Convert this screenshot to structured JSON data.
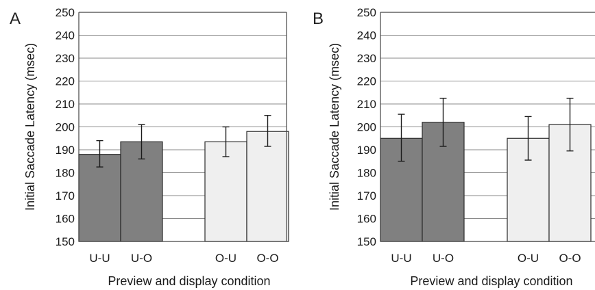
{
  "chart_data": [
    {
      "type": "bar",
      "panel_label": "A",
      "categories": [
        "U-U",
        "U-O",
        "O-U",
        "O-O"
      ],
      "values": [
        188,
        193.5,
        193.5,
        198
      ],
      "error_low": [
        182.5,
        186,
        187,
        191.5
      ],
      "error_high": [
        194,
        201,
        200,
        205
      ],
      "bar_colors": [
        "#808080",
        "#808080",
        "#efefef",
        "#efefef"
      ],
      "xlabel": "Preview and display condition",
      "ylabel": "Initial Saccade Latency (msec)",
      "ylim": [
        150,
        250
      ],
      "yticks": [
        150,
        160,
        170,
        180,
        190,
        200,
        210,
        220,
        230,
        240,
        250
      ],
      "grid": true,
      "legend": "none"
    },
    {
      "type": "bar",
      "panel_label": "B",
      "categories": [
        "U-U",
        "U-O",
        "O-U",
        "O-O"
      ],
      "values": [
        195,
        202,
        195,
        201
      ],
      "error_low": [
        185,
        191.5,
        185.5,
        189.5
      ],
      "error_high": [
        205.5,
        212.5,
        204.5,
        212.5
      ],
      "bar_colors": [
        "#808080",
        "#808080",
        "#efefef",
        "#efefef"
      ],
      "xlabel": "Preview and display condition",
      "ylabel": "Initial Saccade Latency (msec)",
      "ylim": [
        150,
        250
      ],
      "yticks": [
        150,
        160,
        170,
        180,
        190,
        200,
        210,
        220,
        230,
        240,
        250
      ],
      "grid": true,
      "legend": "none"
    }
  ]
}
